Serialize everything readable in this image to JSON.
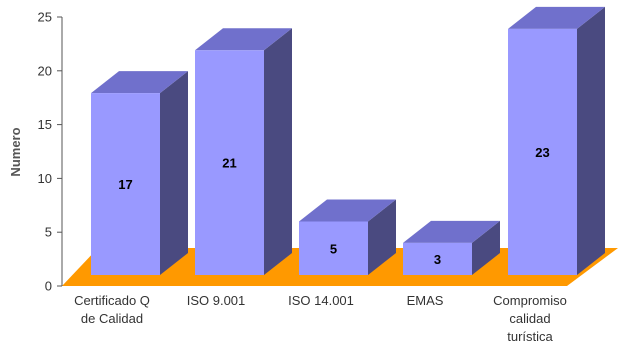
{
  "chart_data": {
    "type": "bar",
    "categories": [
      "Certificado Q de Calidad",
      "ISO 9.001",
      "ISO 14.001",
      "EMAS",
      "Compromiso calidad turística"
    ],
    "category_lines": [
      [
        "Certificado Q",
        "de Calidad"
      ],
      [
        "ISO 9.001"
      ],
      [
        "ISO 14.001"
      ],
      [
        "EMAS"
      ],
      [
        "Compromiso",
        "calidad",
        "turística"
      ]
    ],
    "values": [
      17,
      21,
      5,
      3,
      23
    ],
    "data_labels": [
      "17",
      "21",
      "5",
      "3",
      "23"
    ],
    "title": "",
    "xlabel": "",
    "ylabel": "Numero",
    "ylim": [
      0,
      25
    ],
    "yticks": [
      "0",
      "5",
      "10",
      "15",
      "20",
      "25"
    ],
    "grid": false,
    "legend": "none",
    "colors": {
      "bar_front": "#9999ff",
      "bar_top": "#7070cc",
      "bar_side": "#4a4a80",
      "floor": "#ff9900",
      "axis": "#555555"
    }
  }
}
